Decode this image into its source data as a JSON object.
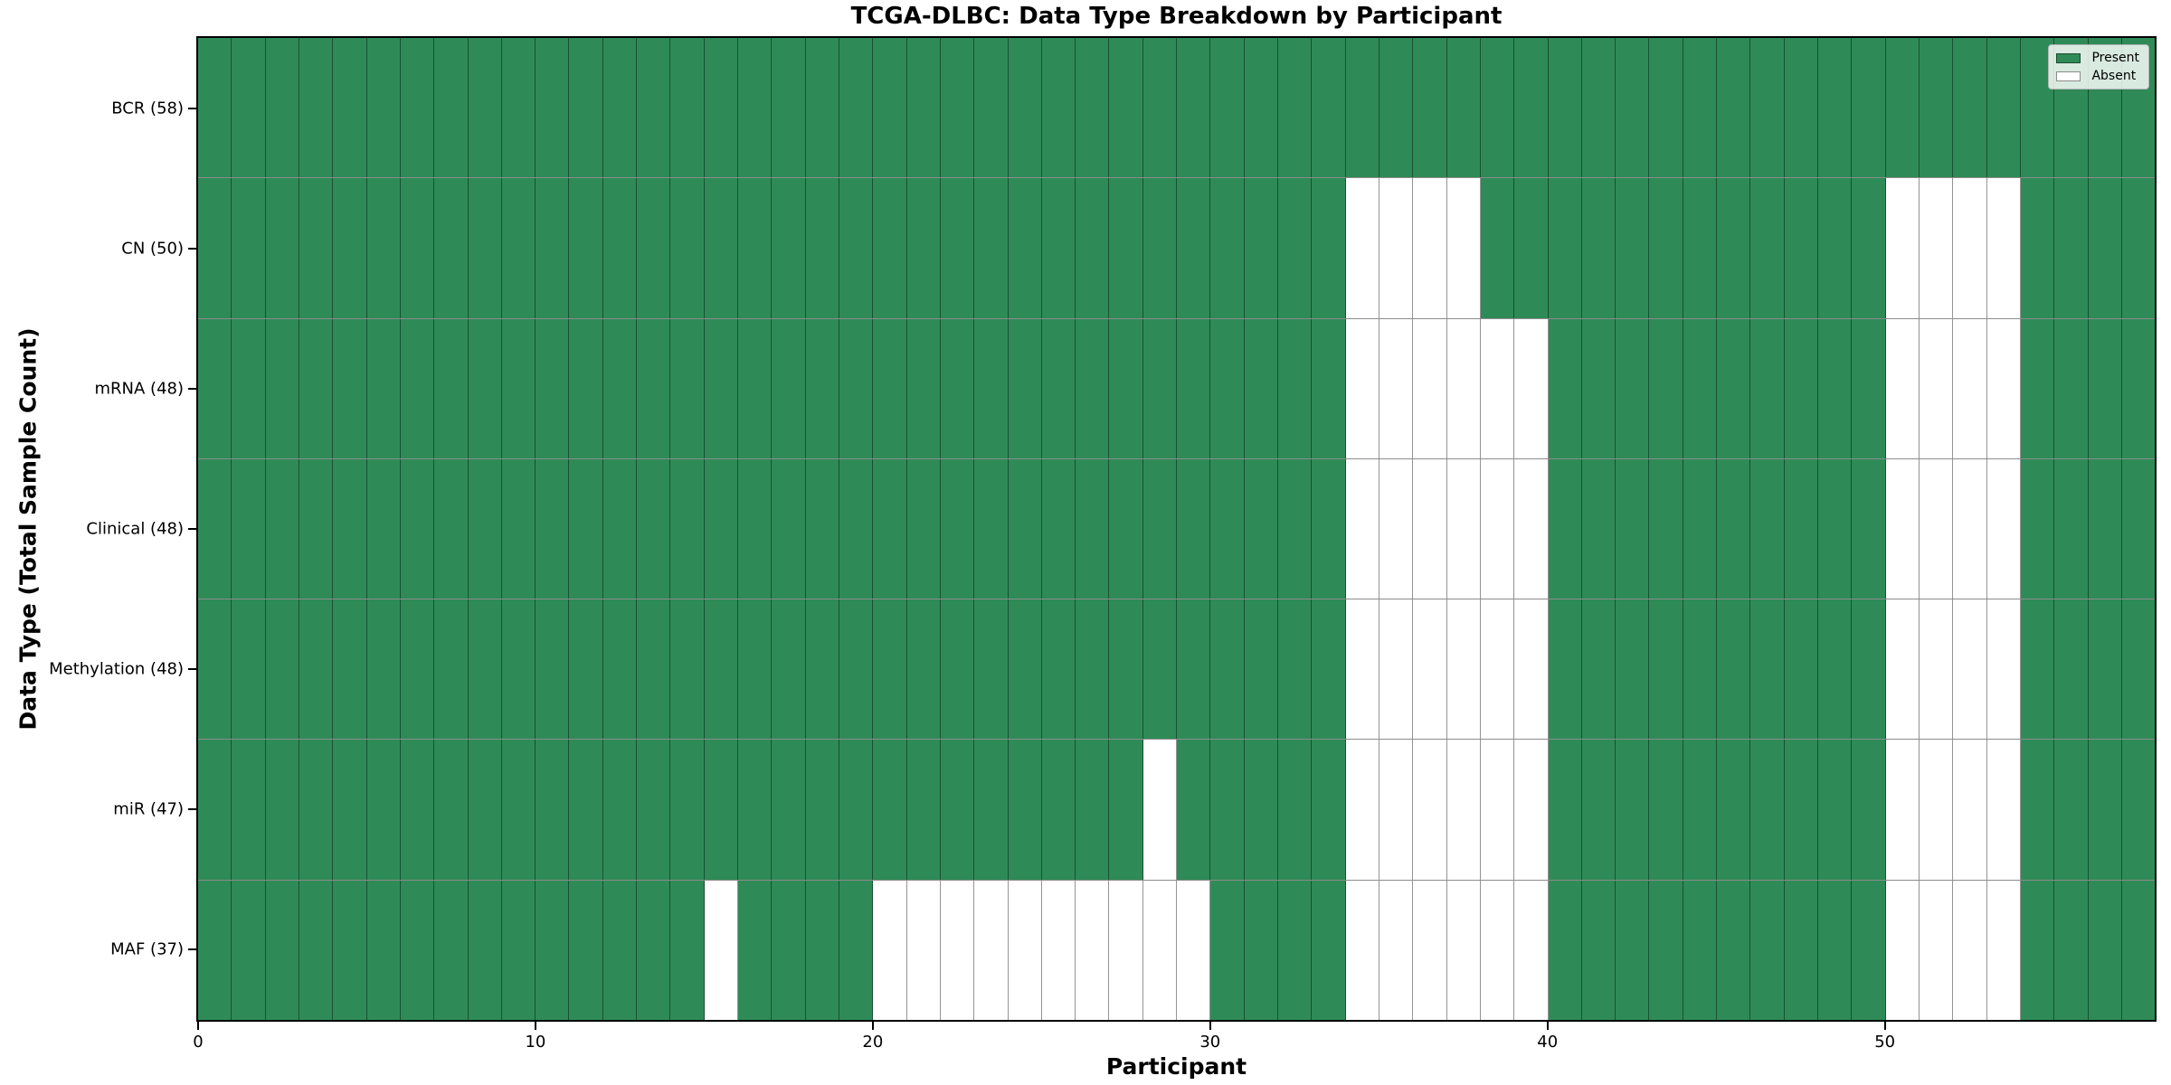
{
  "chart_data": {
    "type": "heatmap",
    "title": "TCGA-DLBC: Data Type Breakdown by Participant",
    "xlabel": "Participant",
    "ylabel": "Data Type (Total Sample Count)",
    "x_ticks": [
      0,
      10,
      20,
      30,
      40,
      50
    ],
    "x_range": [
      0,
      58
    ],
    "n_participants": 58,
    "cell_states": [
      "present",
      "absent"
    ],
    "rows": [
      {
        "label": "BCR (58)",
        "data_type": "BCR",
        "present_count": 58,
        "absent_participants": []
      },
      {
        "label": "CN (50)",
        "data_type": "CN",
        "present_count": 50,
        "absent_participants": [
          34,
          35,
          36,
          37,
          50,
          51,
          52,
          53
        ]
      },
      {
        "label": "mRNA (48)",
        "data_type": "mRNA",
        "present_count": 48,
        "absent_participants": [
          34,
          35,
          36,
          37,
          38,
          39,
          50,
          51,
          52,
          53
        ]
      },
      {
        "label": "Clinical (48)",
        "data_type": "Clinical",
        "present_count": 48,
        "absent_participants": [
          34,
          35,
          36,
          37,
          38,
          39,
          50,
          51,
          52,
          53
        ]
      },
      {
        "label": "Methylation (48)",
        "data_type": "Methylation",
        "present_count": 48,
        "absent_participants": [
          34,
          35,
          36,
          37,
          38,
          39,
          50,
          51,
          52,
          53
        ]
      },
      {
        "label": "miR (47)",
        "data_type": "miR",
        "present_count": 47,
        "absent_participants": [
          28,
          34,
          35,
          36,
          37,
          38,
          39,
          50,
          51,
          52,
          53
        ]
      },
      {
        "label": "MAF (37)",
        "data_type": "MAF",
        "present_count": 37,
        "absent_participants": [
          15,
          20,
          21,
          22,
          23,
          24,
          25,
          26,
          27,
          28,
          29,
          34,
          35,
          36,
          37,
          38,
          39,
          50,
          51,
          52,
          53
        ]
      }
    ],
    "legend": {
      "position": "upper right",
      "entries": [
        {
          "label": "Present",
          "color": "#2e8b57"
        },
        {
          "label": "Absent",
          "color": "#ffffff"
        }
      ]
    },
    "colors": {
      "present": "#2e8b57",
      "absent": "#ffffff",
      "cell_edge": "rgba(0,0,0,0.42)",
      "spine": "#000000",
      "background": "#ffffff"
    }
  }
}
